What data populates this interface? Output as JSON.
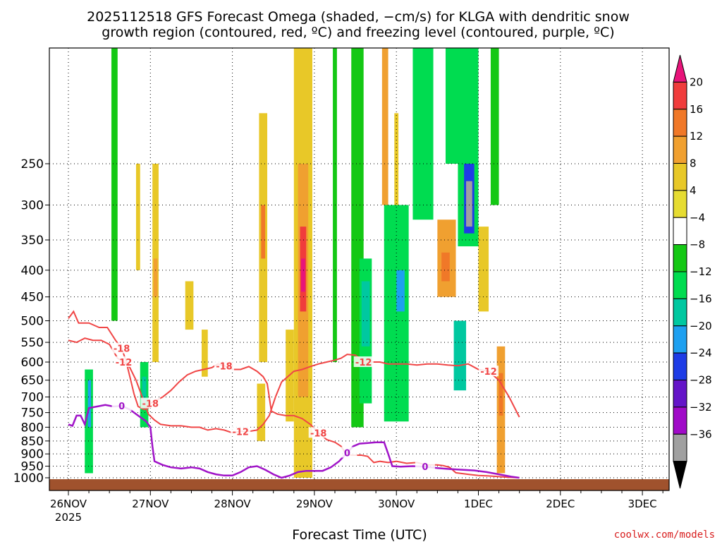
{
  "chart_data": {
    "type": "heatmap",
    "title_line1": "2025112518 GFS Forecast Omega (shaded, −cm/s) for KLGA with dendritic snow",
    "title_line2": "growth region (contoured, red, ºC) and freezing level (contoured, purple, ºC)",
    "xlabel": "Forecast Time (UTC)",
    "credit": "coolwx.com/models",
    "year_label": "2025",
    "x_ticks": [
      "26NOV",
      "27NOV",
      "28NOV",
      "29NOV",
      "30NOV",
      "1DEC",
      "2DEC",
      "3DEC"
    ],
    "y_levels": [
      250,
      300,
      350,
      400,
      450,
      500,
      550,
      600,
      650,
      700,
      750,
      800,
      850,
      900,
      950,
      1000
    ],
    "y_tick_labels": [
      "250",
      "300",
      "350",
      "400",
      "450",
      "500",
      "550",
      "600",
      "650",
      "700",
      "750",
      "800",
      "850",
      "900",
      "950",
      "1000"
    ],
    "colorbar": {
      "labels": [
        "20",
        "16",
        "12",
        "8",
        "4",
        "−4",
        "−8",
        "−12",
        "−16",
        "−20",
        "−24",
        "−28",
        "−32",
        "−36"
      ],
      "bins": [
        {
          "color": "#e8147a"
        },
        {
          "color": "#f03c3c"
        },
        {
          "color": "#f07828"
        },
        {
          "color": "#f0a030"
        },
        {
          "color": "#e8c828"
        },
        {
          "color": "#e6dc32"
        },
        {
          "color": "#ffffff"
        },
        {
          "color": "#14c814"
        },
        {
          "color": "#00dc50"
        },
        {
          "color": "#00c8a0"
        },
        {
          "color": "#1ea0f0"
        },
        {
          "color": "#1e3ce6"
        },
        {
          "color": "#6414c8"
        },
        {
          "color": "#a00ac8"
        },
        {
          "color": "#a0a0a0"
        },
        {
          "color": "#000000"
        }
      ]
    },
    "contour_labels": {
      "minus18": "-18",
      "minus12": "-12",
      "zero": "0"
    },
    "dgz_upper_minus18": [
      [
        0,
        495
      ],
      [
        0.25,
        480
      ],
      [
        0.5,
        505
      ],
      [
        1.0,
        505
      ],
      [
        1.5,
        515
      ],
      [
        1.9,
        515
      ],
      [
        2.3,
        545
      ],
      [
        2.6,
        565
      ],
      [
        2.8,
        595
      ],
      [
        3.0,
        640
      ],
      [
        3.2,
        690
      ],
      [
        3.4,
        730
      ],
      [
        3.7,
        740
      ],
      [
        3.9,
        735
      ],
      [
        4.0,
        720
      ],
      [
        4.3,
        710
      ],
      [
        4.6,
        700
      ],
      [
        5.0,
        680
      ],
      [
        5.4,
        655
      ],
      [
        5.8,
        635
      ],
      [
        6.2,
        625
      ],
      [
        6.6,
        620
      ],
      [
        7.0,
        615
      ],
      [
        7.3,
        605
      ],
      [
        7.6,
        610
      ],
      [
        7.9,
        615
      ],
      [
        8.0,
        620
      ],
      [
        8.4,
        620
      ],
      [
        8.8,
        612
      ],
      [
        9.2,
        625
      ],
      [
        9.5,
        640
      ],
      [
        9.7,
        660
      ],
      [
        9.8,
        700
      ],
      [
        9.9,
        745
      ],
      [
        10.2,
        755
      ],
      [
        10.6,
        760
      ],
      [
        11.0,
        760
      ],
      [
        11.4,
        770
      ],
      [
        11.8,
        790
      ],
      [
        12.2,
        820
      ],
      [
        12.6,
        845
      ],
      [
        13.0,
        855
      ],
      [
        13.3,
        870
      ],
      [
        13.5,
        895
      ],
      [
        13.8,
        905
      ],
      [
        14.3,
        905
      ],
      [
        14.6,
        910
      ],
      [
        14.9,
        935
      ],
      [
        15.2,
        930
      ],
      [
        15.6,
        935
      ],
      [
        16.0,
        930
      ],
      [
        16.5,
        938
      ],
      [
        17.0,
        935
      ],
      [
        17.5,
        945
      ],
      [
        18.0,
        945
      ],
      [
        18.3,
        948
      ],
      [
        18.6,
        955
      ],
      [
        18.9,
        978
      ],
      [
        19.5,
        985
      ],
      [
        20.0,
        990
      ],
      [
        20.5,
        992
      ],
      [
        21.0,
        995
      ],
      [
        21.5,
        998
      ],
      [
        22.0,
        1000
      ]
    ],
    "dgz_lower_minus12": [
      [
        0,
        545
      ],
      [
        0.4,
        550
      ],
      [
        0.8,
        540
      ],
      [
        1.2,
        545
      ],
      [
        1.6,
        545
      ],
      [
        2.0,
        555
      ],
      [
        2.4,
        590
      ],
      [
        2.7,
        600
      ],
      [
        3.0,
        615
      ],
      [
        3.3,
        650
      ],
      [
        3.6,
        700
      ],
      [
        3.9,
        755
      ],
      [
        4.2,
        775
      ],
      [
        4.5,
        790
      ],
      [
        5.0,
        795
      ],
      [
        5.5,
        795
      ],
      [
        6.0,
        800
      ],
      [
        6.4,
        800
      ],
      [
        6.8,
        810
      ],
      [
        7.2,
        805
      ],
      [
        7.6,
        810
      ],
      [
        8.0,
        820
      ],
      [
        8.4,
        815
      ],
      [
        8.8,
        815
      ],
      [
        9.2,
        810
      ],
      [
        9.5,
        790
      ],
      [
        9.8,
        760
      ],
      [
        10.1,
        700
      ],
      [
        10.4,
        655
      ],
      [
        10.7,
        640
      ],
      [
        11.0,
        625
      ],
      [
        11.4,
        620
      ],
      [
        11.8,
        612
      ],
      [
        12.2,
        605
      ],
      [
        12.6,
        600
      ],
      [
        13.0,
        595
      ],
      [
        13.3,
        590
      ],
      [
        13.6,
        580
      ],
      [
        14.0,
        582
      ],
      [
        14.4,
        600
      ],
      [
        14.8,
        600
      ],
      [
        15.2,
        600
      ],
      [
        15.6,
        605
      ],
      [
        16.0,
        605
      ],
      [
        16.5,
        605
      ],
      [
        17.0,
        608
      ],
      [
        17.5,
        605
      ],
      [
        18.0,
        605
      ],
      [
        18.5,
        608
      ],
      [
        19.0,
        610
      ],
      [
        19.5,
        605
      ],
      [
        20.0,
        620
      ],
      [
        20.5,
        625
      ],
      [
        21.0,
        650
      ],
      [
        21.5,
        700
      ],
      [
        22.0,
        765
      ]
    ],
    "freezing_level": [
      [
        0,
        790
      ],
      [
        0.2,
        795
      ],
      [
        0.4,
        760
      ],
      [
        0.6,
        760
      ],
      [
        0.8,
        790
      ],
      [
        1.0,
        735
      ],
      [
        1.4,
        730
      ],
      [
        1.8,
        725
      ],
      [
        2.2,
        730
      ],
      [
        2.6,
        728
      ],
      [
        3.0,
        740
      ],
      [
        3.4,
        760
      ],
      [
        3.8,
        780
      ],
      [
        4.0,
        800
      ],
      [
        4.1,
        870
      ],
      [
        4.2,
        930
      ],
      [
        4.6,
        945
      ],
      [
        5.0,
        955
      ],
      [
        5.5,
        960
      ],
      [
        6.0,
        955
      ],
      [
        6.4,
        960
      ],
      [
        6.8,
        975
      ],
      [
        7.2,
        985
      ],
      [
        7.6,
        990
      ],
      [
        8.0,
        990
      ],
      [
        8.4,
        975
      ],
      [
        8.8,
        955
      ],
      [
        9.2,
        950
      ],
      [
        9.6,
        965
      ],
      [
        10.0,
        985
      ],
      [
        10.4,
        1000
      ],
      [
        10.8,
        990
      ],
      [
        11.2,
        975
      ],
      [
        11.6,
        970
      ],
      [
        12.0,
        970
      ],
      [
        12.4,
        970
      ],
      [
        12.8,
        955
      ],
      [
        13.2,
        930
      ],
      [
        13.6,
        895
      ],
      [
        13.9,
        870
      ],
      [
        14.2,
        860
      ],
      [
        14.6,
        858
      ],
      [
        15.0,
        855
      ],
      [
        15.4,
        855
      ],
      [
        15.6,
        900
      ],
      [
        15.8,
        950
      ],
      [
        16.2,
        952
      ],
      [
        16.8,
        950
      ],
      [
        17.4,
        952
      ],
      [
        18.0,
        958
      ],
      [
        18.6,
        962
      ],
      [
        19.2,
        965
      ],
      [
        19.8,
        968
      ],
      [
        20.4,
        975
      ],
      [
        21.0,
        985
      ],
      [
        21.6,
        995
      ],
      [
        22.0,
        1000
      ]
    ],
    "omega_cells": [
      {
        "x0": 11.0,
        "x1": 11.9,
        "p0": 150,
        "p1": 1000,
        "v": 6
      },
      {
        "x0": 11.2,
        "x1": 11.7,
        "p0": 250,
        "p1": 700,
        "v": 10
      },
      {
        "x0": 11.3,
        "x1": 11.6,
        "p0": 330,
        "p1": 480,
        "v": 16
      },
      {
        "x0": 11.35,
        "x1": 11.55,
        "p0": 380,
        "p1": 440,
        "v": 20
      },
      {
        "x0": 10.6,
        "x1": 11.0,
        "p0": 520,
        "p1": 780,
        "v": 6
      },
      {
        "x0": 9.3,
        "x1": 9.7,
        "p0": 200,
        "p1": 600,
        "v": 6
      },
      {
        "x0": 9.4,
        "x1": 9.6,
        "p0": 300,
        "p1": 380,
        "v": 12
      },
      {
        "x0": 9.2,
        "x1": 9.6,
        "p0": 660,
        "p1": 850,
        "v": 6
      },
      {
        "x0": 4.1,
        "x1": 4.4,
        "p0": 250,
        "p1": 600,
        "v": 6
      },
      {
        "x0": 4.15,
        "x1": 4.35,
        "p0": 380,
        "p1": 450,
        "v": 10
      },
      {
        "x0": 3.3,
        "x1": 3.5,
        "p0": 250,
        "p1": 400,
        "v": 6
      },
      {
        "x0": 5.7,
        "x1": 6.1,
        "p0": 420,
        "p1": 520,
        "v": 6
      },
      {
        "x0": 6.5,
        "x1": 6.8,
        "p0": 520,
        "p1": 640,
        "v": 6
      },
      {
        "x0": 15.3,
        "x1": 15.6,
        "p0": 150,
        "p1": 300,
        "v": 8
      },
      {
        "x0": 15.9,
        "x1": 16.1,
        "p0": 200,
        "p1": 320,
        "v": 6
      },
      {
        "x0": 18.0,
        "x1": 18.9,
        "p0": 320,
        "p1": 450,
        "v": 10
      },
      {
        "x0": 18.2,
        "x1": 18.6,
        "p0": 370,
        "p1": 420,
        "v": 14
      },
      {
        "x0": 20.0,
        "x1": 20.5,
        "p0": 330,
        "p1": 480,
        "v": 6
      },
      {
        "x0": 20.9,
        "x1": 21.3,
        "p0": 560,
        "p1": 980,
        "v": 8
      },
      {
        "x0": 21.0,
        "x1": 21.2,
        "p0": 630,
        "p1": 760,
        "v": 14
      },
      {
        "x0": 0.8,
        "x1": 1.2,
        "p0": 620,
        "p1": 980,
        "v": -10
      },
      {
        "x0": 0.95,
        "x1": 1.1,
        "p0": 650,
        "p1": 800,
        "v": -18
      },
      {
        "x0": 3.5,
        "x1": 3.9,
        "p0": 600,
        "p1": 800,
        "v": -8
      },
      {
        "x0": 3.6,
        "x1": 3.8,
        "p0": 640,
        "p1": 720,
        "v": -12
      },
      {
        "x0": 2.1,
        "x1": 2.4,
        "p0": 150,
        "p1": 500,
        "v": -6
      },
      {
        "x0": 13.8,
        "x1": 14.4,
        "p0": 150,
        "p1": 800,
        "v": -6
      },
      {
        "x0": 14.2,
        "x1": 14.8,
        "p0": 380,
        "p1": 720,
        "v": -10
      },
      {
        "x0": 14.3,
        "x1": 14.7,
        "p0": 420,
        "p1": 560,
        "v": -14
      },
      {
        "x0": 15.4,
        "x1": 16.6,
        "p0": 300,
        "p1": 780,
        "v": -8
      },
      {
        "x0": 16.0,
        "x1": 16.4,
        "p0": 400,
        "p1": 480,
        "v": -16
      },
      {
        "x0": 17.1,
        "x1": 17.5,
        "p0": 220,
        "p1": 300,
        "v": -22
      },
      {
        "x0": 16.8,
        "x1": 17.8,
        "p0": 150,
        "p1": 320,
        "v": -8
      },
      {
        "x0": 18.4,
        "x1": 19.4,
        "p0": 150,
        "p1": 250,
        "v": -8
      },
      {
        "x0": 19.0,
        "x1": 20.0,
        "p0": 150,
        "p1": 360,
        "v": -10
      },
      {
        "x0": 19.3,
        "x1": 19.8,
        "p0": 250,
        "p1": 340,
        "v": -22
      },
      {
        "x0": 19.45,
        "x1": 19.65,
        "p0": 290,
        "p1": 320,
        "v": -36
      },
      {
        "x0": 19.4,
        "x1": 19.7,
        "p0": 270,
        "p1": 330,
        "v": -32
      },
      {
        "x0": 18.8,
        "x1": 19.4,
        "p0": 500,
        "p1": 680,
        "v": -12
      },
      {
        "x0": 12.9,
        "x1": 13.1,
        "p0": 150,
        "p1": 600,
        "v": -6
      },
      {
        "x0": 20.6,
        "x1": 21.0,
        "p0": 150,
        "p1": 300,
        "v": -6
      }
    ]
  }
}
